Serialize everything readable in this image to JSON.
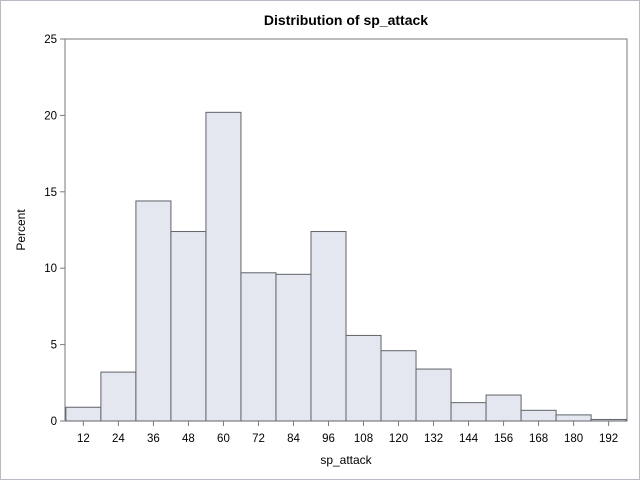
{
  "chart_data": {
    "type": "bar",
    "title": "Distribution of sp_attack",
    "xlabel": "sp_attack",
    "ylabel": "Percent",
    "bin_width": 12,
    "categories": [
      "12",
      "24",
      "36",
      "48",
      "60",
      "72",
      "84",
      "96",
      "108",
      "120",
      "132",
      "144",
      "156",
      "168",
      "180",
      "192"
    ],
    "values": [
      0.9,
      3.2,
      14.4,
      12.4,
      20.2,
      9.7,
      9.6,
      12.4,
      5.6,
      4.6,
      3.4,
      1.2,
      1.7,
      0.7,
      0.4,
      0.1
    ],
    "ylim": [
      0,
      25
    ],
    "yticks": [
      0,
      5,
      10,
      15,
      20,
      25
    ],
    "grid": false,
    "colors": {
      "bar_fill": "#e4e7f0",
      "bar_stroke": "#5f6368"
    }
  }
}
